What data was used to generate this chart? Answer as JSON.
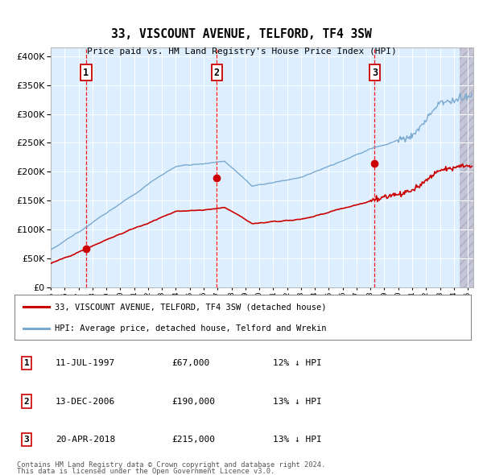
{
  "title": "33, VISCOUNT AVENUE, TELFORD, TF4 3SW",
  "subtitle": "Price paid vs. HM Land Registry's House Price Index (HPI)",
  "ytick_vals": [
    0,
    50000,
    100000,
    150000,
    200000,
    250000,
    300000,
    350000,
    400000
  ],
  "ylim": [
    0,
    415000
  ],
  "xlim_start": 1995.0,
  "xlim_end": 2025.4,
  "sale_dates": [
    1997.53,
    2006.95,
    2018.3
  ],
  "sale_prices": [
    67000,
    190000,
    215000
  ],
  "sale_labels": [
    "1",
    "2",
    "3"
  ],
  "sale_info": [
    {
      "num": "1",
      "date": "11-JUL-1997",
      "price": "£67,000",
      "pct": "12% ↓ HPI"
    },
    {
      "num": "2",
      "date": "13-DEC-2006",
      "price": "£190,000",
      "pct": "13% ↓ HPI"
    },
    {
      "num": "3",
      "date": "20-APR-2018",
      "price": "£215,000",
      "pct": "13% ↓ HPI"
    }
  ],
  "legend_line1": "33, VISCOUNT AVENUE, TELFORD, TF4 3SW (detached house)",
  "legend_line2": "HPI: Average price, detached house, Telford and Wrekin",
  "footer1": "Contains HM Land Registry data © Crown copyright and database right 2024.",
  "footer2": "This data is licensed under the Open Government Licence v3.0.",
  "hpi_color": "#7aaad0",
  "price_color": "#cc0000",
  "bg_color": "#ddeeff",
  "hatch_color": "#c8c8d8"
}
